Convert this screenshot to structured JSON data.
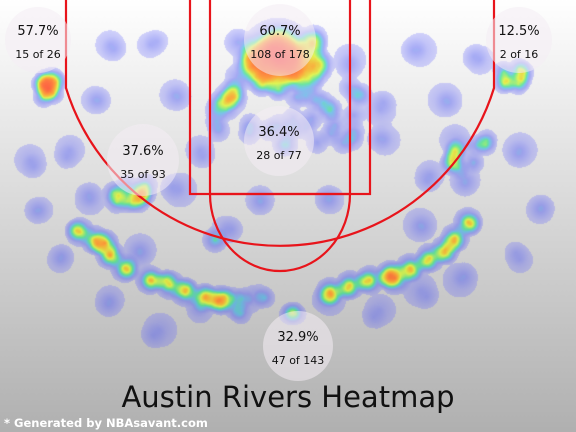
{
  "chart_data": {
    "type": "heatmap",
    "title": "Austin Rivers Heatmap",
    "footer": "* Generated by NBAsavant.com",
    "zones": [
      {
        "id": "left-corner-3",
        "pct": "57.7%",
        "made_attempts": "15 of 26",
        "made": 15,
        "attempts": 26
      },
      {
        "id": "restricted-area",
        "pct": "60.7%",
        "made_attempts": "108 of 178",
        "made": 108,
        "attempts": 178
      },
      {
        "id": "right-corner-3",
        "pct": "12.5%",
        "made_attempts": "2 of 16",
        "made": 2,
        "attempts": 16
      },
      {
        "id": "left-midrange",
        "pct": "37.6%",
        "made_attempts": "35 of 93",
        "made": 35,
        "attempts": 93
      },
      {
        "id": "paint-non-ra",
        "pct": "36.4%",
        "made_attempts": "28 of 77",
        "made": 28,
        "attempts": 77
      },
      {
        "id": "above-break-3",
        "pct": "32.9%",
        "made_attempts": "47 of 143",
        "made": 47,
        "attempts": 143
      }
    ],
    "colors": {
      "court_lines": "#e8141b",
      "background_top": "#ffffff",
      "background_bottom": "#b0b0b0",
      "zone_bubble": "#f4ecf4"
    }
  }
}
